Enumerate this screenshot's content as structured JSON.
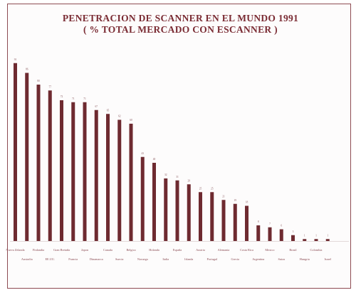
{
  "chart_data": {
    "type": "bar",
    "title": "PENETRACION DE SCANNER EN EL MUNDO 1991",
    "subtitle": "( % TOTAL MERCADO CON ESCANNER )",
    "categories": [
      "Nueva Zelanda",
      "Australia",
      "Finlandia",
      "EE.UU.",
      "Gran Bretaña",
      "Francia",
      "Japon",
      "Dinamarca",
      "Canada",
      "Suecia",
      "Belgica",
      "Noruega",
      "Holanda",
      "Italia",
      "España",
      "Irlanda",
      "Austria",
      "Portugal",
      "Alemania",
      "Grecia",
      "Costa Rica",
      "Argentina",
      "Mexico",
      "Suiza",
      "Brasil",
      "Hungria",
      "Colombia",
      "Israel"
    ],
    "values": [
      91,
      86,
      80,
      77,
      72,
      71,
      71,
      67,
      65,
      62,
      60,
      43,
      40,
      32,
      31,
      29,
      25,
      25,
      21,
      19,
      18,
      8,
      7,
      6,
      3,
      1,
      1,
      1
    ],
    "value_labels": [
      "91",
      "86",
      "80",
      "77",
      "72",
      "71",
      "71",
      "67",
      "65",
      "62",
      "60",
      "43",
      "40",
      "32",
      "31",
      "29",
      "25",
      "25",
      "21",
      "19",
      "18",
      "8",
      "7",
      "6",
      "3",
      "1",
      "1",
      "1"
    ],
    "ylim": [
      0,
      100
    ],
    "xlabel": "",
    "ylabel": "",
    "grid": false,
    "legend": "none",
    "bar_color": "#6e2a30",
    "text_color": "#7a2b33"
  }
}
